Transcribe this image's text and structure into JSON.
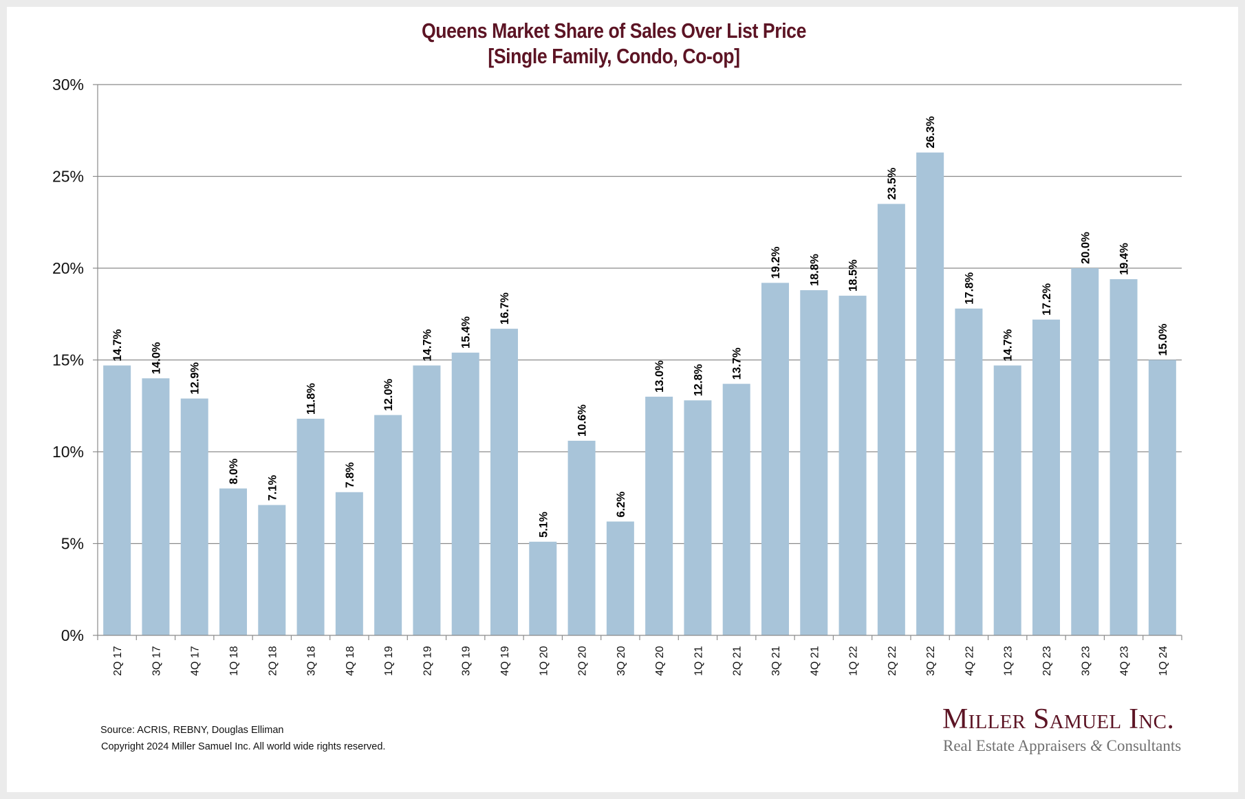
{
  "chart_data": {
    "type": "bar",
    "title": "Queens Market Share of Sales Over List Price",
    "subtitle": "[Single Family, Condo, Co-op]",
    "xlabel": "",
    "ylabel": "",
    "ylim": [
      0,
      30
    ],
    "yticks": [
      0,
      5,
      10,
      15,
      20,
      25,
      30
    ],
    "ytick_labels": [
      "0%",
      "5%",
      "10%",
      "15%",
      "20%",
      "25%",
      "30%"
    ],
    "grid": true,
    "legend": "none",
    "bar_color": "#a8c4d9",
    "categories": [
      "2Q 17",
      "3Q 17",
      "4Q 17",
      "1Q 18",
      "2Q 18",
      "3Q 18",
      "4Q 18",
      "1Q 19",
      "2Q 19",
      "3Q 19",
      "4Q 19",
      "1Q 20",
      "2Q 20",
      "3Q 20",
      "4Q 20",
      "1Q 21",
      "2Q 21",
      "3Q 21",
      "4Q 21",
      "1Q 22",
      "2Q 22",
      "3Q 22",
      "4Q 22",
      "1Q 23",
      "2Q 23",
      "3Q 23",
      "4Q 23",
      "1Q 24"
    ],
    "values": [
      14.7,
      14.0,
      12.9,
      8.0,
      7.1,
      11.8,
      7.8,
      12.0,
      14.7,
      15.4,
      16.7,
      5.1,
      10.6,
      6.2,
      13.0,
      12.8,
      13.7,
      19.2,
      18.8,
      18.5,
      23.5,
      26.3,
      17.8,
      14.7,
      17.2,
      20.0,
      19.4,
      15.0
    ],
    "data_labels": [
      "14.7%",
      "14.0%",
      "12.9%",
      "8.0%",
      "7.1%",
      "11.8%",
      "7.8%",
      "12.0%",
      "14.7%",
      "15.4%",
      "16.7%",
      "5.1%",
      "10.6%",
      "6.2%",
      "13.0%",
      "12.8%",
      "13.7%",
      "19.2%",
      "18.8%",
      "18.5%",
      "23.5%",
      "26.3%",
      "17.8%",
      "14.7%",
      "17.2%",
      "20.0%",
      "19.4%",
      "15.0%"
    ]
  },
  "footer": {
    "source": "Source: ACRIS, REBNY, Douglas Elliman",
    "copyright": "Copyright 2024 Miller Samuel Inc.  All world wide rights reserved."
  },
  "logo": {
    "name": "Miller Samuel Inc.",
    "tagline_before": "Real Estate Appraisers ",
    "tagline_amp": "&",
    "tagline_after": " Consultants",
    "brand_color": "#5c1424"
  }
}
